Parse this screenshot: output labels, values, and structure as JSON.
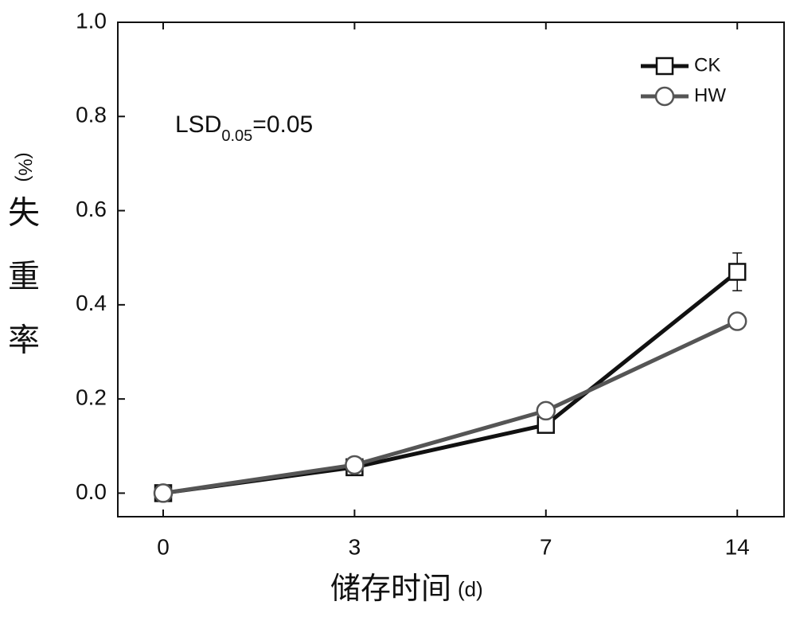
{
  "chart_data": {
    "type": "line",
    "annotation": {
      "main": "LSD",
      "sub": "0.05",
      "rest": "=0.05"
    },
    "x_label": "储存时间",
    "x_label_unit": "(d)",
    "y_label": [
      "失",
      "重",
      "率"
    ],
    "y_label_unit": "(%)",
    "categories": [
      "0",
      "3",
      "7",
      "14"
    ],
    "series": [
      {
        "name": "CK",
        "color": "#111111",
        "marker": "square",
        "values": [
          0,
          0.055,
          0.145,
          0.47
        ],
        "errors": [
          0,
          0.01,
          0.01,
          0.04
        ]
      },
      {
        "name": "HW",
        "color": "#555555",
        "marker": "circle",
        "values": [
          0,
          0.06,
          0.175,
          0.365
        ],
        "errors": [
          0,
          0.01,
          0.015,
          0.015
        ]
      }
    ],
    "ylim": [
      -0.05,
      1.0
    ],
    "yticks": [
      {
        "value": 0,
        "label": "0.0"
      },
      0.2,
      0.4,
      0.6,
      0.8,
      {
        "value": 1.0,
        "label": "1.0"
      }
    ],
    "legend": "upper right"
  }
}
